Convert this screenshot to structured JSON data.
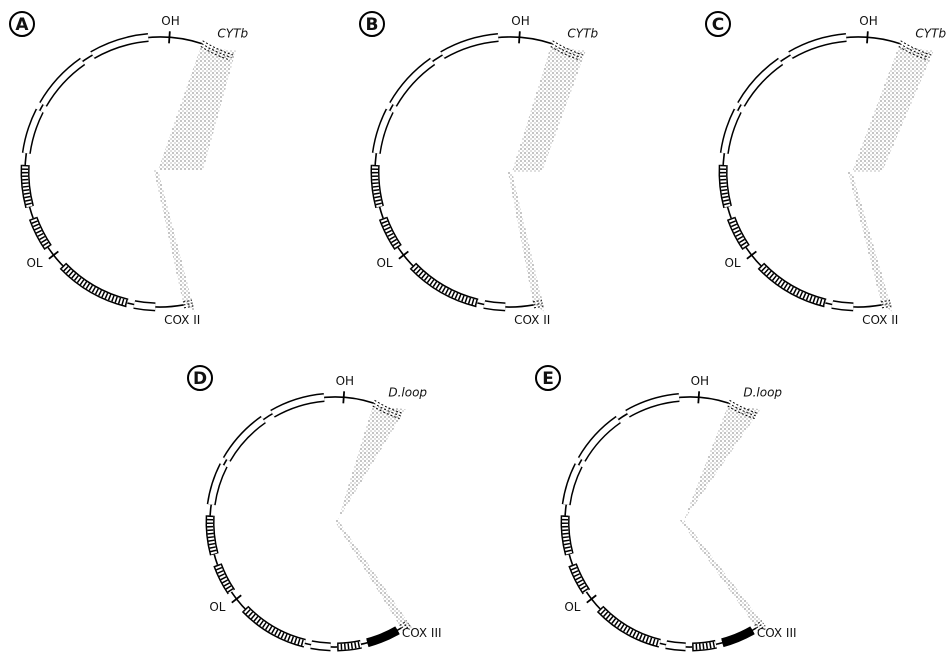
{
  "panels": [
    {
      "label": "A",
      "origin_heavy": "OH",
      "origin_light": "OL",
      "gene_start": "CYTb",
      "gene_end": "COX II"
    },
    {
      "label": "B",
      "origin_heavy": "OH",
      "origin_light": "OL",
      "gene_start": "CYTb",
      "gene_end": "COX II"
    },
    {
      "label": "C",
      "origin_heavy": "OH",
      "origin_light": "OL",
      "gene_start": "CYTb",
      "gene_end": "COX II"
    },
    {
      "label": "D",
      "origin_heavy": "OH",
      "origin_light": "OL",
      "gene_start": "D.loop",
      "gene_end": "COX III"
    },
    {
      "label": "E",
      "origin_heavy": "OH",
      "origin_light": "OL",
      "gene_start": "D.loop",
      "gene_end": "COX III"
    }
  ]
}
